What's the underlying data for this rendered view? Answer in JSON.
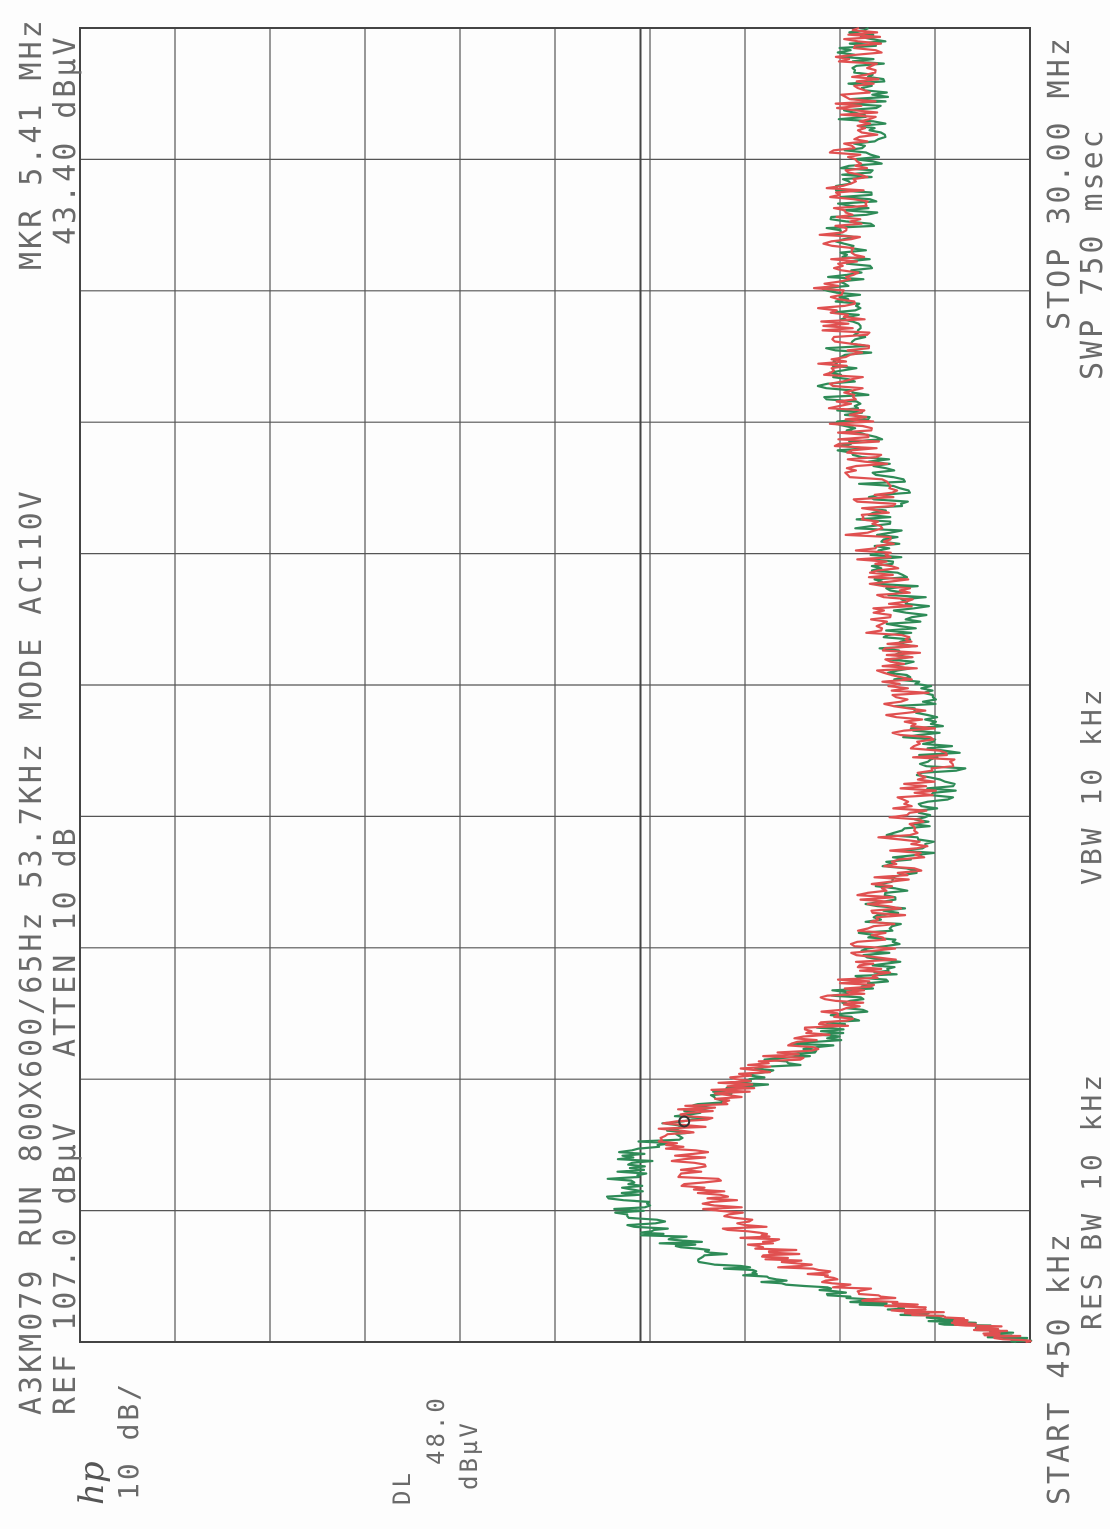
{
  "header": {
    "line1": "A3KM079 RUN 800X600/65Hz 53.7KHz MODE AC110V",
    "line2": "REF 107.0 dBµV   ATTEN 10 dB",
    "marker_freq": "MKR 5.41 MHz",
    "marker_level": "43.40 dBµV"
  },
  "logo": "hp",
  "left": {
    "scale": "10 dB/",
    "dl_label": "DL",
    "dl_value": "48.0",
    "dl_unit": "dBµV"
  },
  "footer": {
    "start": "START 450 kHz",
    "res_bw": "RES BW 10 kHz",
    "vbw": "VBW 10 kHz",
    "stop": "STOP 30.00 MHz",
    "swp": "SWP 750 msec"
  },
  "chart_data": {
    "type": "line",
    "title": "A3KM079 RUN 800X600/65Hz 53.7KHz MODE AC110V",
    "xlabel": "",
    "ylabel": "",
    "x_unit": "MHz",
    "y_unit": "dBµV",
    "xlim": [
      0.45,
      30.0
    ],
    "ylim": [
      7.0,
      107.0
    ],
    "y_scale_per_div": 10,
    "display_line": 48.0,
    "marker": {
      "x": 5.41,
      "y": 43.4
    },
    "grid": true,
    "colors": {
      "series_1": "#2e8b57",
      "series_2": "#e05050",
      "grid": "#555555"
    },
    "series": [
      {
        "x": [
          0.45,
          0.6,
          0.8,
          1.0,
          1.2,
          1.5,
          1.8,
          2.1,
          2.4,
          2.7,
          3.0,
          3.4,
          3.8,
          4.2,
          4.6,
          5.0,
          5.41,
          5.8,
          6.2,
          6.6,
          7.0,
          7.4,
          7.8,
          8.2,
          8.6,
          9.0,
          9.5,
          10.0,
          10.5,
          11.0,
          11.5,
          12.0,
          12.5,
          13.0,
          13.5,
          14.0,
          14.5,
          15.0,
          15.5,
          16.0,
          16.5,
          17.0,
          17.5,
          18.0,
          18.5,
          19.0,
          19.5,
          20.0,
          20.5,
          21.0,
          21.5,
          22.0,
          22.5,
          23.0,
          23.5,
          24.0,
          24.5,
          25.0,
          25.5,
          26.0,
          26.5,
          27.0,
          27.5,
          28.0,
          28.5,
          29.0,
          29.5,
          30.0
        ],
        "y": [
          8.5,
          10,
          13,
          17,
          21,
          27,
          33,
          38,
          41,
          44,
          47,
          49,
          50,
          50,
          49,
          46,
          43.4,
          40,
          37,
          34,
          31,
          28,
          26,
          27,
          24,
          22,
          23,
          22,
          22,
          21,
          19,
          20,
          18,
          17,
          16,
          18,
          19,
          19,
          20,
          21,
          21,
          20,
          21,
          22,
          23,
          23,
          22,
          23,
          25,
          25,
          26,
          27,
          26,
          26,
          27,
          27,
          26,
          25,
          26,
          25,
          26,
          25,
          24,
          25,
          24,
          24,
          25,
          24
        ]
      },
      {
        "x": [
          0.45,
          0.6,
          0.8,
          1.0,
          1.2,
          1.5,
          1.8,
          2.1,
          2.4,
          2.7,
          3.0,
          3.4,
          3.8,
          4.2,
          4.6,
          5.0,
          5.41,
          5.8,
          6.2,
          6.6,
          7.0,
          7.4,
          7.8,
          8.2,
          8.6,
          9.0,
          9.5,
          10.0,
          10.5,
          11.0,
          11.5,
          12.0,
          12.5,
          13.0,
          13.5,
          14.0,
          14.5,
          15.0,
          15.5,
          16.0,
          16.5,
          17.0,
          17.5,
          18.0,
          18.5,
          19.0,
          19.5,
          20.0,
          20.5,
          21.0,
          21.5,
          22.0,
          22.5,
          23.0,
          23.5,
          24.0,
          24.5,
          25.0,
          25.5,
          26.0,
          26.5,
          27.0,
          27.5,
          28.0,
          28.5,
          29.0,
          29.5,
          30.0
        ],
        "y": [
          8.5,
          10,
          12,
          16,
          20,
          24,
          28,
          31,
          33,
          35,
          37,
          39,
          41,
          42,
          43,
          44,
          43.4,
          41,
          38,
          35,
          32,
          29,
          27,
          27,
          25,
          23,
          24,
          22,
          23,
          21,
          20,
          21,
          19,
          18,
          17,
          19,
          20,
          20,
          21,
          21,
          22,
          21,
          22,
          23,
          24,
          24,
          23,
          24,
          25,
          26,
          26,
          27,
          27,
          26,
          27,
          28,
          27,
          26,
          27,
          26,
          26,
          26,
          25,
          25,
          25,
          25,
          25,
          25
        ]
      }
    ]
  }
}
